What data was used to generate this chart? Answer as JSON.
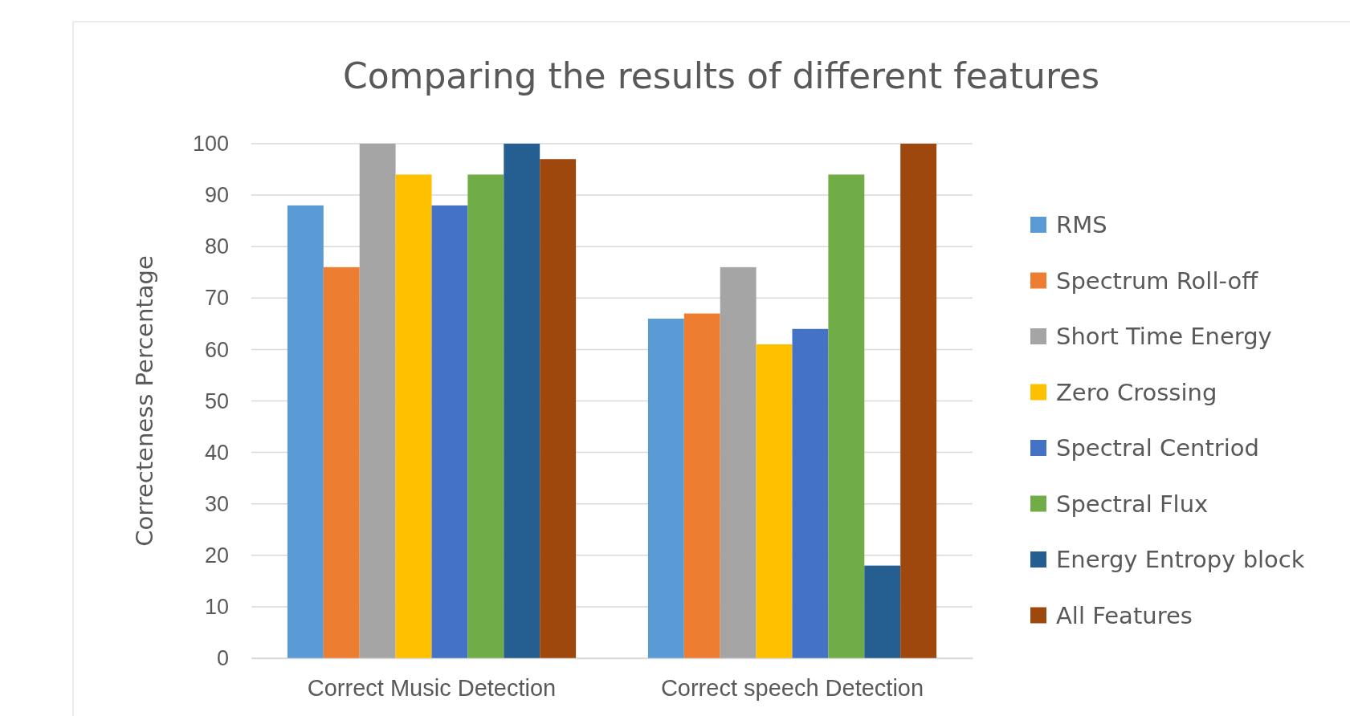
{
  "chart_data": {
    "type": "bar",
    "title": "Comparing the results of different features",
    "ylabel": "Correcteness Percentage",
    "categories": [
      "Correct Music Detection",
      "Correct speech Detection"
    ],
    "series": [
      {
        "name": "RMS",
        "color": "#5b9bd5",
        "values": [
          88,
          66
        ]
      },
      {
        "name": "Spectrum Roll-off",
        "color": "#ed7d31",
        "values": [
          76,
          67
        ]
      },
      {
        "name": "Short Time Energy",
        "color": "#a5a5a5",
        "values": [
          100,
          76
        ]
      },
      {
        "name": "Zero Crossing",
        "color": "#ffc000",
        "values": [
          94,
          61
        ]
      },
      {
        "name": "Spectral Centriod",
        "color": "#4472c4",
        "values": [
          88,
          64
        ]
      },
      {
        "name": "Spectral Flux",
        "color": "#70ad47",
        "values": [
          94,
          94
        ]
      },
      {
        "name": "Energy Entropy block",
        "color": "#255e91",
        "values": [
          100,
          18
        ]
      },
      {
        "name": "All Features",
        "color": "#9e480e",
        "values": [
          97,
          100
        ]
      }
    ],
    "ylim": [
      0,
      100
    ],
    "yticks": [
      0,
      10,
      20,
      30,
      40,
      50,
      60,
      70,
      80,
      90,
      100
    ],
    "grid": "y",
    "legend": "right"
  }
}
